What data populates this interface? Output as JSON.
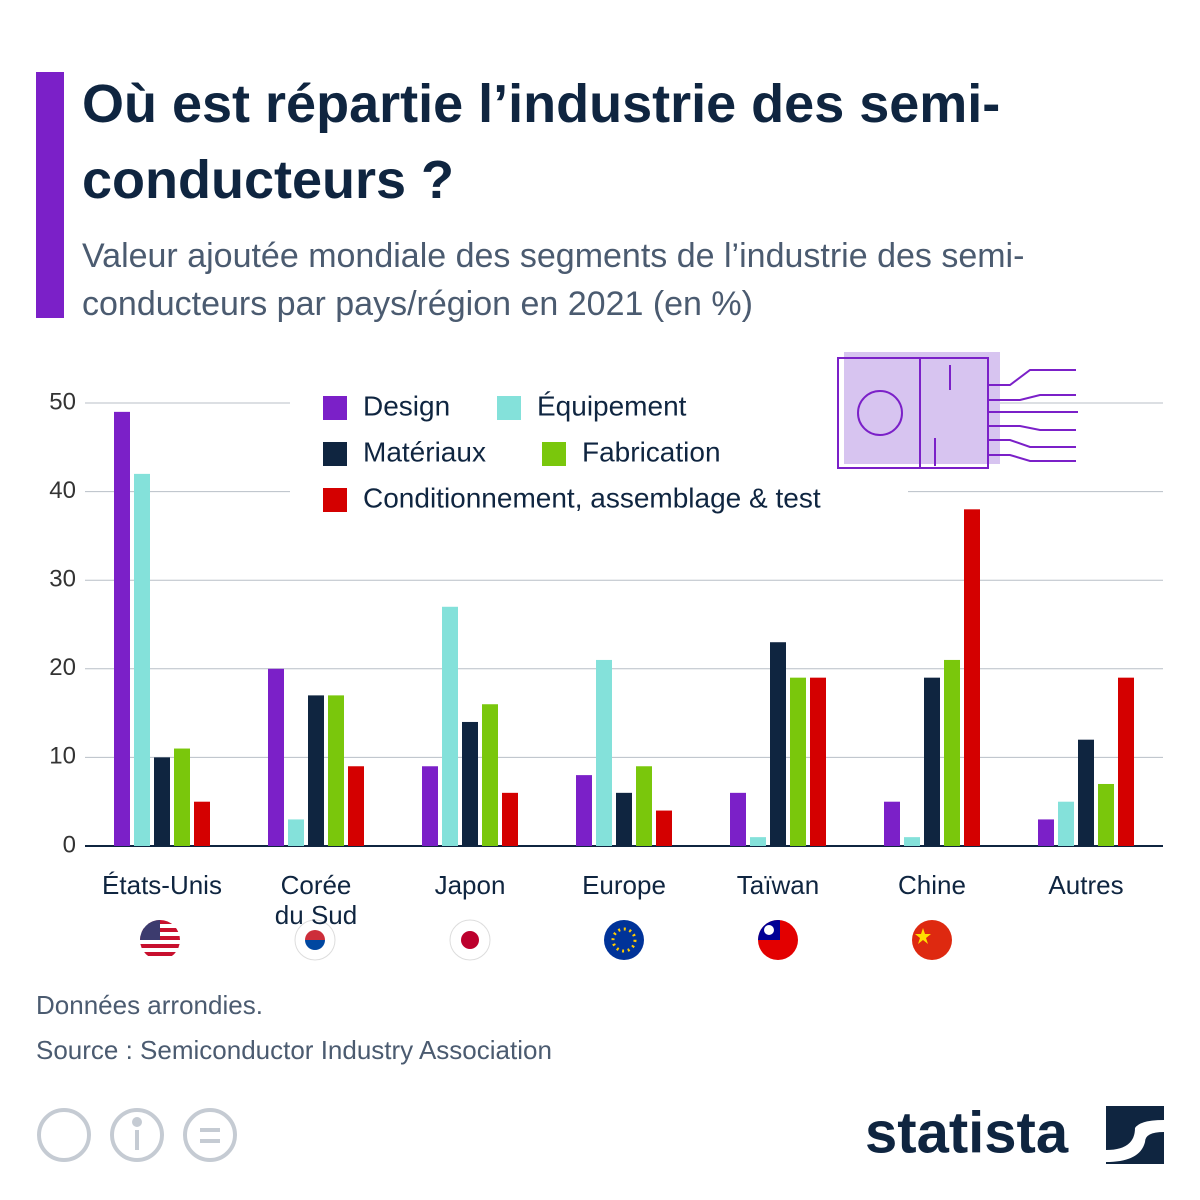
{
  "chart_data": {
    "type": "bar",
    "title": "Où est répartie l’industrie des semi-conducteurs ?",
    "subtitle": "Valeur ajoutée mondiale des segments de l’industrie des semi-conducteurs par pays/région en 2021 (en %)",
    "note": "Données arrondies.",
    "source": "Source : Semiconductor Industry Association",
    "brand": "statista",
    "categories": [
      "États-Unis",
      "Corée du Sud",
      "Japon",
      "Europe",
      "Taïwan",
      "Chine",
      "Autres"
    ],
    "series": [
      {
        "name": "Design",
        "color": "#7b20c8",
        "values": [
          49,
          20,
          9,
          8,
          6,
          5,
          3
        ]
      },
      {
        "name": "Équipement",
        "color": "#84e1da",
        "values": [
          42,
          3,
          27,
          21,
          1,
          1,
          5
        ]
      },
      {
        "name": "Matériaux",
        "color": "#0f2540",
        "values": [
          10,
          17,
          14,
          6,
          23,
          19,
          12
        ]
      },
      {
        "name": "Fabrication",
        "color": "#7ac70c",
        "values": [
          11,
          17,
          16,
          9,
          19,
          21,
          7
        ]
      },
      {
        "name": "Conditionnement, assemblage & test",
        "color": "#d40000",
        "values": [
          5,
          9,
          6,
          4,
          19,
          38,
          19
        ]
      }
    ],
    "ylim": [
      0,
      50
    ],
    "yticks": [
      0,
      10,
      20,
      30,
      40,
      50
    ],
    "grid": true
  }
}
